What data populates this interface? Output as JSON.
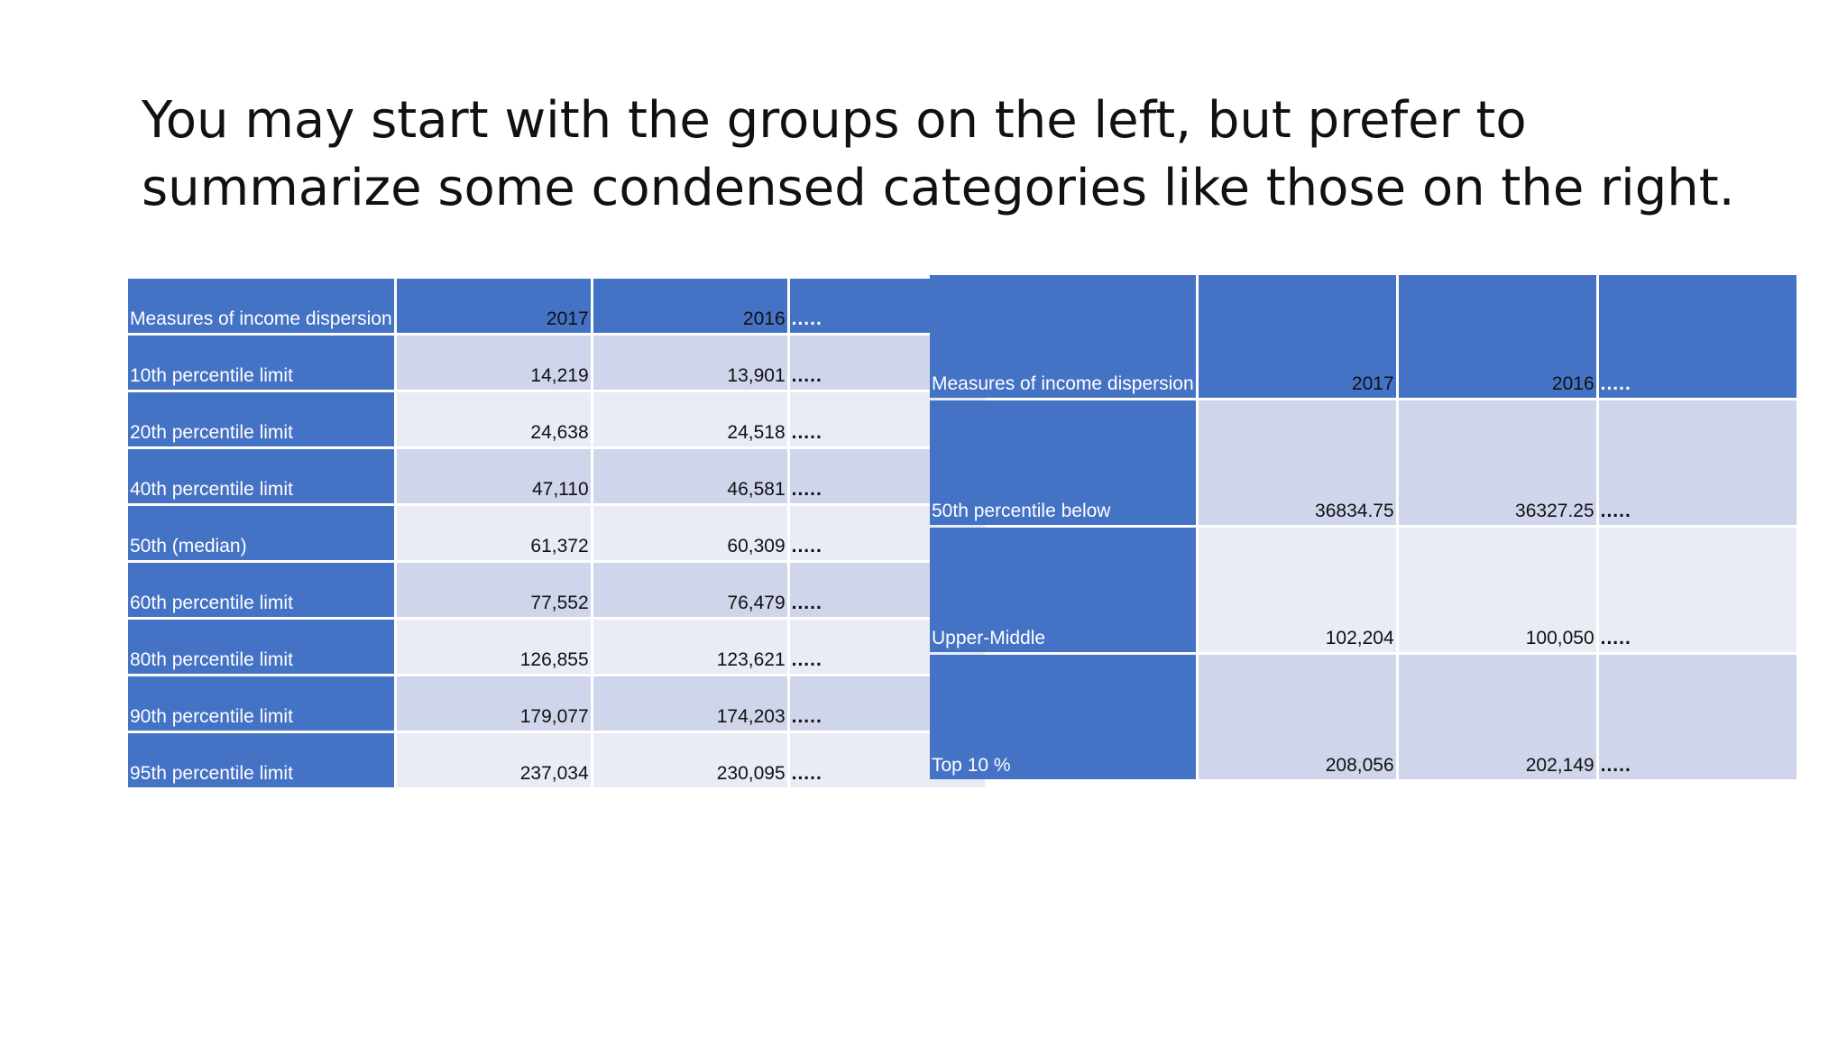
{
  "slide": {
    "title_line1": "You may start with the groups on the left, but prefer to",
    "title_line2": "summarize some condensed categories like those on the right."
  },
  "colors": {
    "header_blue": "#4472c4",
    "band_dark": "#cfd5ea",
    "band_light": "#e9ebf5"
  },
  "left_table": {
    "header": {
      "label": "Measures of income dispersion",
      "col_2017": "2017",
      "col_2016": "2016",
      "col_more": "....."
    },
    "rows": [
      {
        "label": "10th percentile limit",
        "v2017": "14,219",
        "v2016": "13,901",
        "more": "....."
      },
      {
        "label": "20th percentile limit",
        "v2017": "24,638",
        "v2016": "24,518",
        "more": "....."
      },
      {
        "label": "40th percentile limit",
        "v2017": "47,110",
        "v2016": "46,581",
        "more": "....."
      },
      {
        "label": "50th (median)",
        "v2017": "61,372",
        "v2016": "60,309",
        "more": "....."
      },
      {
        "label": "60th percentile limit",
        "v2017": "77,552",
        "v2016": "76,479",
        "more": "....."
      },
      {
        "label": "80th percentile limit",
        "v2017": "126,855",
        "v2016": "123,621",
        "more": "....."
      },
      {
        "label": "90th percentile limit",
        "v2017": "179,077",
        "v2016": "174,203",
        "more": "....."
      },
      {
        "label": "95th percentile limit",
        "v2017": "237,034",
        "v2016": "230,095",
        "more": "....."
      }
    ]
  },
  "right_table": {
    "header": {
      "label": "Measures of income dispersion",
      "col_2017": "2017",
      "col_2016": "2016",
      "col_more": "....."
    },
    "rows": [
      {
        "label": "50th percentile below",
        "v2017": "36834.75",
        "v2016": "36327.25",
        "more": "....."
      },
      {
        "label": "Upper-Middle",
        "v2017": "102,204",
        "v2016": "100,050",
        "more": "....."
      },
      {
        "label": "Top 10 %",
        "v2017": "208,056",
        "v2016": "202,149",
        "more": "....."
      }
    ]
  }
}
